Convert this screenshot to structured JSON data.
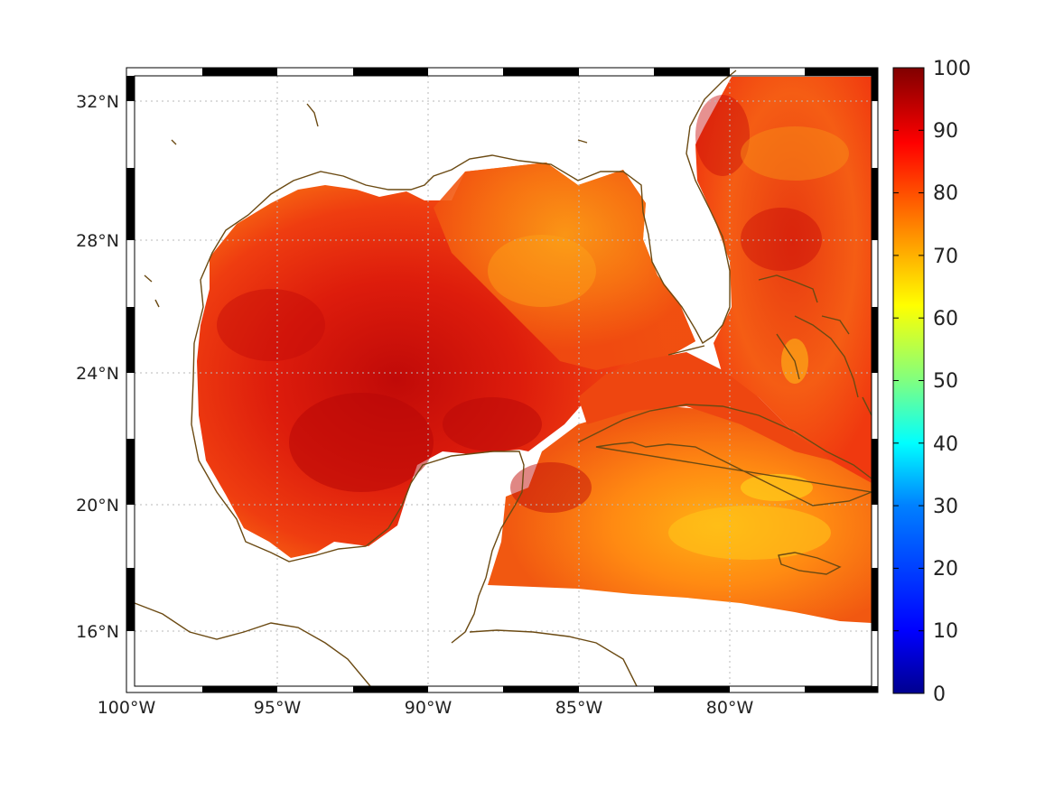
{
  "map": {
    "title": "",
    "region": "Gulf of Mexico and western Caribbean",
    "lon_range": [
      -100,
      -75
    ],
    "lat_range": [
      14,
      33
    ],
    "x_tick_labels": [
      "100°W",
      "95°W",
      "90°W",
      "85°W",
      "80°W"
    ],
    "y_tick_labels": [
      "32°N",
      "28°N",
      "24°N",
      "20°N",
      "16°N"
    ],
    "grid": "dotted"
  },
  "colorbar": {
    "range": [
      0,
      100
    ],
    "tick_labels": [
      "100",
      "90",
      "80",
      "70",
      "60",
      "50",
      "40",
      "30",
      "20",
      "10",
      "0"
    ],
    "colormap": "jet",
    "colors": [
      "#00008f",
      "#0000ff",
      "#0080ff",
      "#00ffff",
      "#80ff80",
      "#ffff00",
      "#ff8000",
      "#ff0000",
      "#800000"
    ]
  },
  "styles": {
    "coastline_color": "#6b4a13",
    "ocean_base_color": "#f44a10",
    "grid_color": "#b9b9b9"
  }
}
